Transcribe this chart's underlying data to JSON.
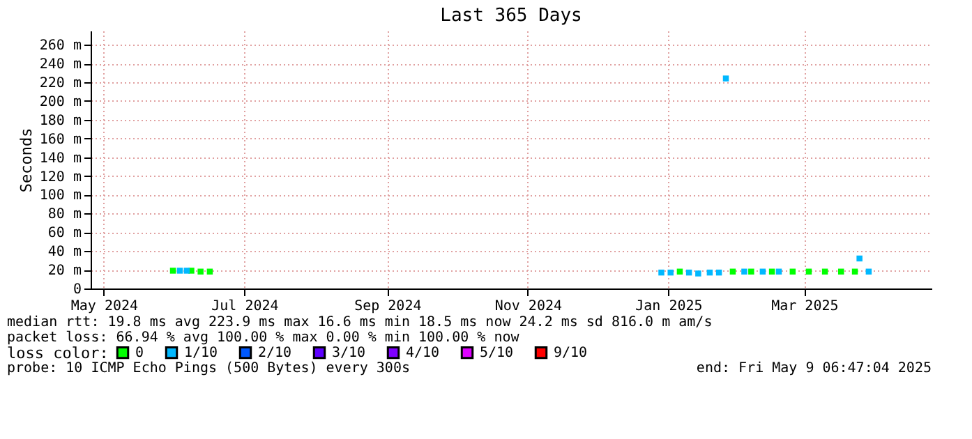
{
  "chart_data": {
    "type": "scatter",
    "title": "Last 365 Days",
    "ylabel": "Seconds",
    "legend_title": "loss color:",
    "legend": "bottom",
    "marker": "square",
    "grid": true,
    "xlim": [
      "2024-05-09T06:47",
      "2025-05-09T06:47"
    ],
    "xticks": [
      {
        "value": "2024-05-15",
        "label": "May 2024"
      },
      {
        "value": "2024-07-15",
        "label": "Jul 2024"
      },
      {
        "value": "2024-09-15",
        "label": "Sep 2024"
      },
      {
        "value": "2024-11-15",
        "label": "Nov 2024"
      },
      {
        "value": "2025-01-15",
        "label": "Jan 2025"
      },
      {
        "value": "2025-03-15",
        "label": "Mar 2025"
      }
    ],
    "ylim": [
      0,
      275
    ],
    "yticks": [
      {
        "value": 0,
        "label": "0"
      },
      {
        "value": 20,
        "label": "20 m"
      },
      {
        "value": 40,
        "label": "40 m"
      },
      {
        "value": 60,
        "label": "60 m"
      },
      {
        "value": 80,
        "label": "80 m"
      },
      {
        "value": 100,
        "label": "100 m"
      },
      {
        "value": 120,
        "label": "120 m"
      },
      {
        "value": 140,
        "label": "140 m"
      },
      {
        "value": 160,
        "label": "160 m"
      },
      {
        "value": 180,
        "label": "180 m"
      },
      {
        "value": 200,
        "label": "200 m"
      },
      {
        "value": 220,
        "label": "220 m"
      },
      {
        "value": 240,
        "label": "240 m"
      },
      {
        "value": 260,
        "label": "260 m"
      }
    ],
    "series": [
      {
        "name": "0",
        "color": "#00ff00",
        "x": [
          "2024-06-14",
          "2024-06-22",
          "2024-06-26",
          "2024-06-30",
          "2025-01-20",
          "2025-02-12",
          "2025-02-20",
          "2025-03-01",
          "2025-03-10",
          "2025-03-17",
          "2025-03-24",
          "2025-03-31",
          "2025-04-06"
        ],
        "values": [
          19,
          19,
          18,
          18,
          18,
          18,
          18,
          18,
          18,
          18,
          18,
          18,
          18
        ]
      },
      {
        "name": "1/10",
        "color": "#00b8ff",
        "x": [
          "2024-06-17",
          "2024-06-20",
          "2025-01-12",
          "2025-01-16",
          "2025-01-24",
          "2025-01-28",
          "2025-02-02",
          "2025-02-06",
          "2025-02-09",
          "2025-02-17",
          "2025-02-25",
          "2025-03-04",
          "2025-04-08",
          "2025-04-12"
        ],
        "values": [
          19,
          19,
          17,
          17,
          17,
          16,
          17,
          17,
          224,
          18,
          18,
          18,
          32,
          18
        ]
      },
      {
        "name": "2/10",
        "color": "#0059ff"
      },
      {
        "name": "3/10",
        "color": "#5e00ff"
      },
      {
        "name": "4/10",
        "color": "#7e00ff"
      },
      {
        "name": "5/10",
        "color": "#dd00ff"
      },
      {
        "name": "9/10",
        "color": "#ff0000"
      }
    ],
    "annotations": [
      "median rtt:  19.8 ms avg  223.9 ms max  16.6 ms min  18.5 ms now  24.2 ms sd  816.0 m am/s",
      "packet loss: 66.94 % avg  100.00 % max  0.00 % min  100.00 % now",
      "probe:       10 ICMP Echo Pings (500 Bytes) every 300s",
      "end: Fri May  9 06:47:04 2025"
    ]
  }
}
